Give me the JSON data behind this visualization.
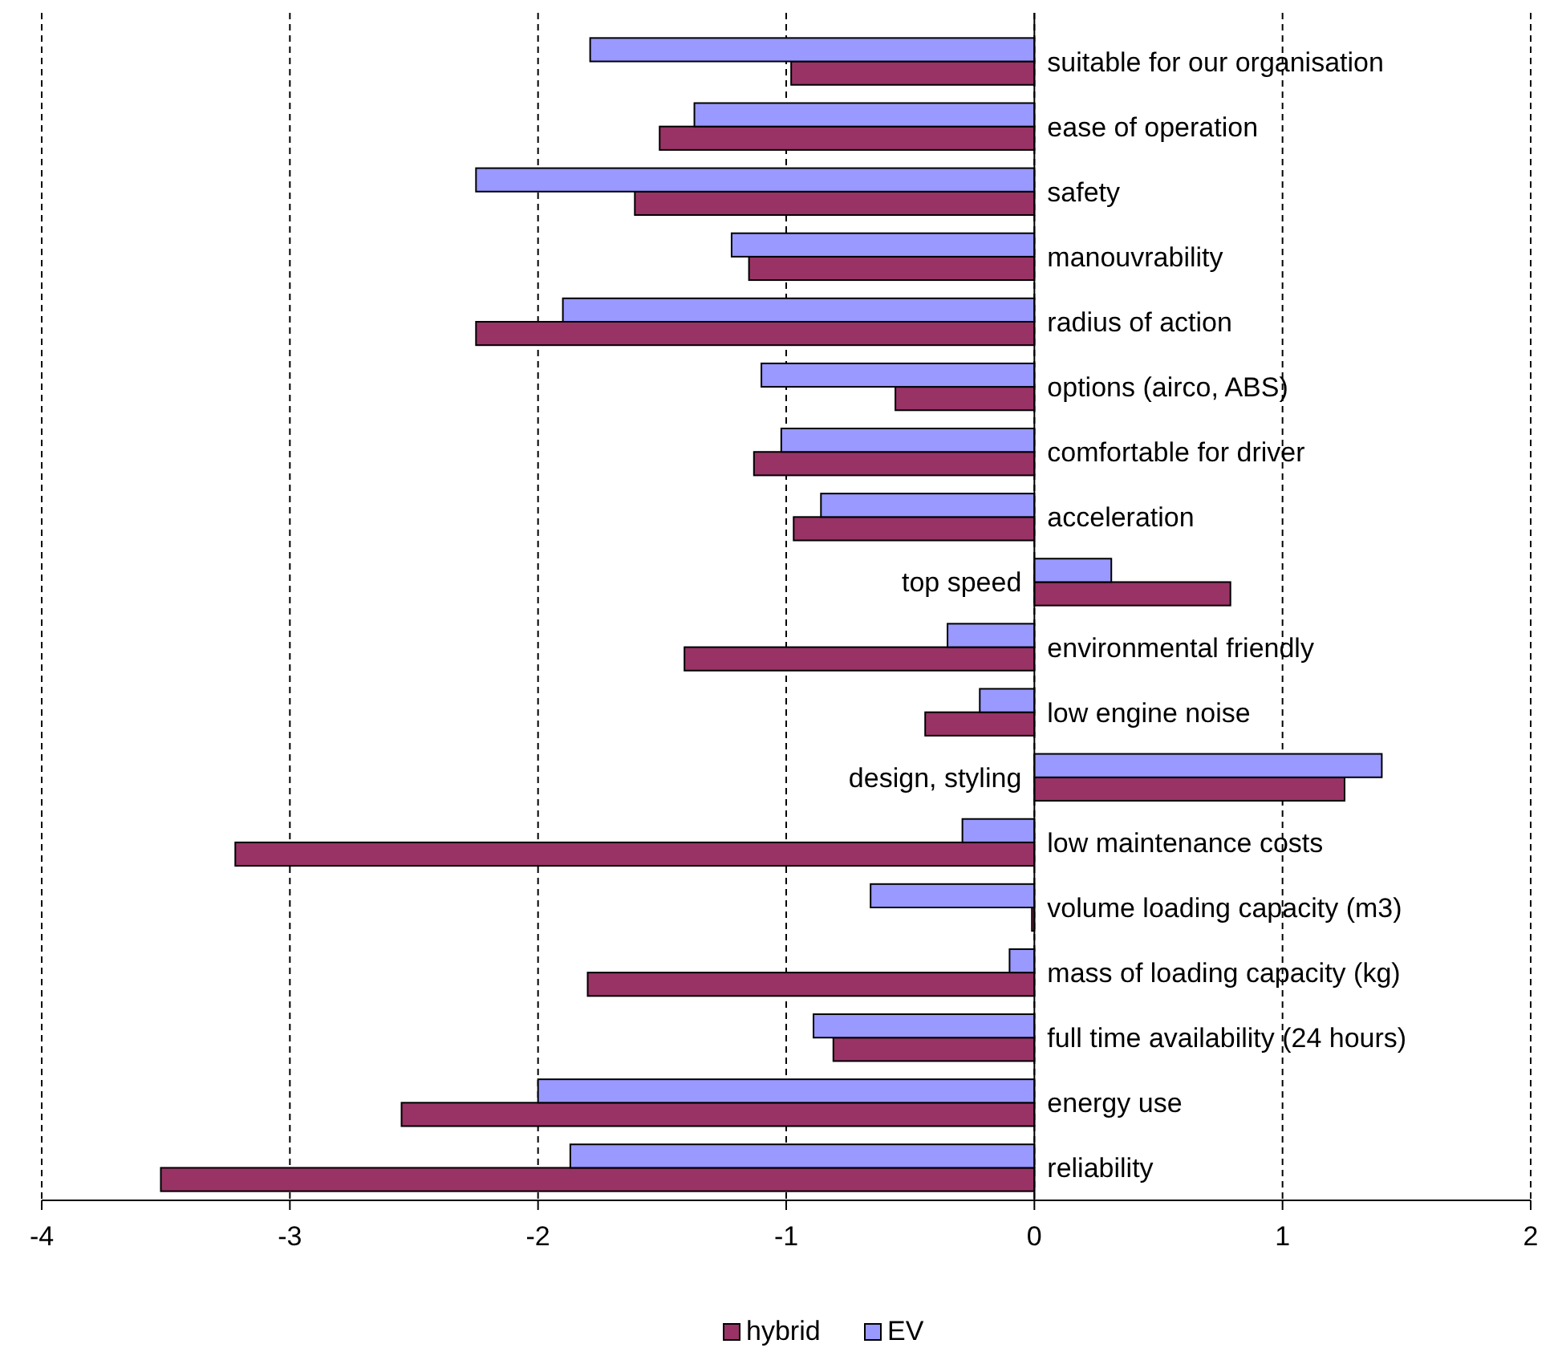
{
  "chart_data": {
    "type": "bar",
    "orientation": "horizontal",
    "categories": [
      "suitable for our organisation",
      "ease of operation",
      "safety",
      "manouvrability",
      "radius of action",
      "options (airco, ABS)",
      "comfortable for driver",
      "acceleration",
      "top speed",
      "environmental friendly",
      "low engine noise",
      "design, styling",
      "low maintenance costs",
      "volume loading capacity (m3)",
      "mass of loading capacity (kg)",
      "full time availability (24 hours)",
      "energy use",
      "reliability"
    ],
    "series": [
      {
        "name": "hybrid",
        "color": "#993366",
        "values": [
          -0.98,
          -1.51,
          -1.61,
          -1.15,
          -2.25,
          -0.56,
          -1.13,
          -0.97,
          0.79,
          -1.41,
          -0.44,
          1.25,
          -3.22,
          -0.01,
          -1.8,
          -0.81,
          -2.55,
          -3.52
        ]
      },
      {
        "name": "EV",
        "color": "#9999ff",
        "values": [
          -1.79,
          -1.37,
          -2.25,
          -1.22,
          -1.9,
          -1.1,
          -1.02,
          -0.86,
          0.31,
          -0.35,
          -0.22,
          1.4,
          -0.29,
          -0.66,
          -0.1,
          -0.89,
          -2.0,
          -1.87
        ]
      }
    ],
    "xlim": [
      -4,
      2
    ],
    "xticks": [
      -4,
      -3,
      -2,
      -1,
      0,
      1,
      2
    ],
    "grid": "x",
    "legend": "bottom"
  }
}
